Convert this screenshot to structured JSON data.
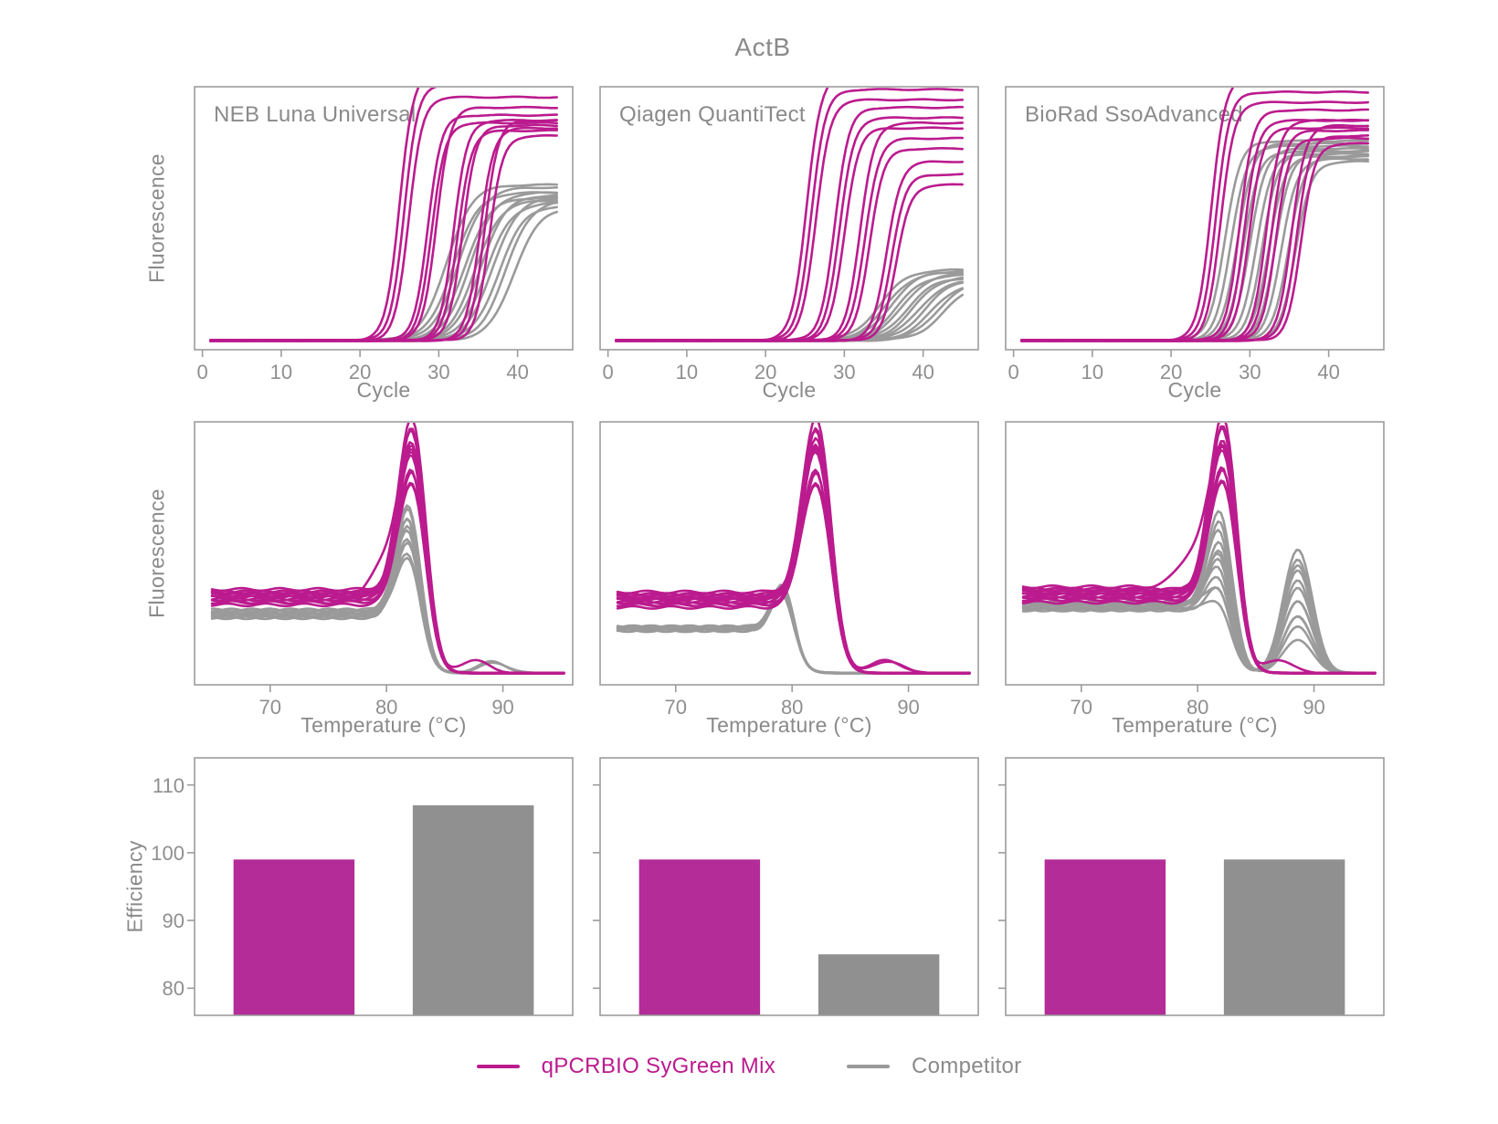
{
  "title": "ActB",
  "colors": {
    "qpcrbio_line": "#bb1b8e",
    "qpcrbio_fill": "#b32c98",
    "competitor_line": "#9a9a9a",
    "competitor_fill": "#909090",
    "text": "#8a8a8a",
    "tick_text": "#8f8f8f",
    "panel_border": "#9c9c9c"
  },
  "legend": [
    {
      "label": "qPCRBIO SyGreen Mix",
      "key": "qpcrbio"
    },
    {
      "label": "Competitor",
      "key": "competitor"
    }
  ],
  "chart_data": {
    "type": "multi-panel",
    "layout": "3 columns (master mixes) x 3 rows (amplification curves, melt curves, efficiency bars); legend bottom center",
    "title": "ActB",
    "axes": [
      {
        "row": "amplification",
        "type": "line",
        "xlabel": "Cycle",
        "ylabel": "Fluorescence",
        "xticks": [
          0,
          10,
          20,
          30,
          40
        ],
        "xlim": [
          -1,
          47
        ],
        "grid": false
      },
      {
        "row": "melt",
        "type": "line",
        "xlabel": "Temperature (°C)",
        "ylabel": "Fluorescence",
        "xticks": [
          70,
          80,
          90
        ],
        "xlim": [
          63.5,
          96
        ],
        "grid": false
      },
      {
        "row": "efficiency",
        "type": "bar",
        "ylabel": "Efficiency",
        "yticks": [
          80,
          90,
          100,
          110
        ],
        "ylim": [
          76,
          114
        ],
        "grid": false
      }
    ],
    "panels": [
      {
        "panel_label": "NEB Luna Universal",
        "amplification": {
          "x_start": 1,
          "x_end": 45.2,
          "baseline": 0.025,
          "qpcrbio": {
            "k": 1.15,
            "curves": [
              [
                25.0,
                1.07
              ],
              [
                25.6,
                1.02
              ],
              [
                26.2,
                0.97
              ],
              [
                28.6,
                0.9
              ],
              [
                29.1,
                0.87
              ],
              [
                29.7,
                0.93
              ],
              [
                31.9,
                0.88
              ],
              [
                32.4,
                0.84
              ],
              [
                33.0,
                0.86
              ],
              [
                35.2,
                0.85
              ],
              [
                35.8,
                0.88
              ],
              [
                36.4,
                0.82
              ]
            ]
          },
          "competitor": {
            "k": 0.62,
            "curves": [
              [
                31.0,
                0.63
              ],
              [
                31.8,
                0.6
              ],
              [
                32.5,
                0.62
              ],
              [
                33.2,
                0.58
              ],
              [
                33.9,
                0.6
              ],
              [
                34.6,
                0.57
              ],
              [
                35.3,
                0.59
              ],
              [
                36.0,
                0.56
              ],
              [
                36.8,
                0.58
              ],
              [
                37.6,
                0.55
              ],
              [
                38.5,
                0.57
              ],
              [
                39.5,
                0.54
              ]
            ]
          }
        },
        "melt": {
          "x_start": 65,
          "x_end": 95.3,
          "end_level": 0.035,
          "qpcrbio": {
            "tm": 82.2,
            "s": 1.15,
            "drop": 83.4,
            "curves": [
              [
                0.34,
                0.72
              ],
              [
                0.32,
                0.69
              ],
              [
                0.35,
                0.66
              ],
              [
                0.31,
                0.63
              ],
              [
                0.33,
                0.6
              ],
              [
                0.36,
                0.57
              ],
              [
                0.3,
                0.54
              ],
              [
                0.34,
                0.51
              ],
              [
                0.32,
                0.48
              ],
              [
                0.35,
                0.45
              ],
              [
                0.33,
                0.58
              ],
              [
                0.31,
                0.64
              ]
            ],
            "extras": [
              {
                "i": 3,
                "tm": 79.6,
                "h": 0.13,
                "s": 1.3
              },
              {
                "i": 7,
                "tm": 87.6,
                "h": 0.05,
                "s": 1.2
              }
            ]
          },
          "competitor": {
            "tm": 81.9,
            "s": 1.05,
            "drop": 82.9,
            "curves": [
              [
                0.26,
                0.46
              ],
              [
                0.27,
                0.43
              ],
              [
                0.25,
                0.41
              ],
              [
                0.28,
                0.39
              ],
              [
                0.26,
                0.37
              ],
              [
                0.27,
                0.35
              ],
              [
                0.25,
                0.32
              ],
              [
                0.28,
                0.3
              ],
              [
                0.26,
                0.27
              ],
              [
                0.27,
                0.24
              ]
            ],
            "extras": [
              {
                "i": 1,
                "tm": 89.0,
                "h": 0.045,
                "s": 1.2
              },
              {
                "i": 4,
                "tm": 89.2,
                "h": 0.04,
                "s": 1.2
              }
            ]
          }
        },
        "efficiency": {
          "categories": [
            "qPCRBIO SyGreen Mix",
            "Competitor"
          ],
          "values": [
            99,
            107
          ]
        }
      },
      {
        "panel_label": "Qiagen QuantiTect",
        "amplification": {
          "x_start": 1,
          "x_end": 45.2,
          "baseline": 0.025,
          "qpcrbio": {
            "k": 1.1,
            "curves": [
              [
                25.2,
                1.06
              ],
              [
                25.8,
                1.0
              ],
              [
                26.4,
                0.96
              ],
              [
                28.8,
                0.93
              ],
              [
                29.4,
                0.89
              ],
              [
                30.0,
                0.85
              ],
              [
                32.0,
                0.87
              ],
              [
                32.6,
                0.81
              ],
              [
                33.2,
                0.77
              ],
              [
                35.4,
                0.72
              ],
              [
                36.0,
                0.67
              ],
              [
                36.6,
                0.63
              ]
            ]
          },
          "competitor": {
            "k": 0.58,
            "curves": [
              [
                34.5,
                0.3
              ],
              [
                35.2,
                0.29
              ],
              [
                35.9,
                0.295
              ],
              [
                36.6,
                0.28
              ],
              [
                37.3,
                0.285
              ],
              [
                38.0,
                0.27
              ],
              [
                38.7,
                0.275
              ],
              [
                39.4,
                0.26
              ],
              [
                40.2,
                0.265
              ],
              [
                41.0,
                0.25
              ],
              [
                41.8,
                0.255
              ],
              [
                42.6,
                0.245
              ]
            ]
          }
        },
        "melt": {
          "x_start": 65,
          "x_end": 95.3,
          "end_level": 0.035,
          "qpcrbio": {
            "tm": 82.1,
            "s": 1.2,
            "drop": 83.5,
            "curves": [
              [
                0.33,
                0.72
              ],
              [
                0.31,
                0.69
              ],
              [
                0.34,
                0.66
              ],
              [
                0.3,
                0.63
              ],
              [
                0.32,
                0.6
              ],
              [
                0.35,
                0.57
              ],
              [
                0.29,
                0.54
              ],
              [
                0.33,
                0.51
              ],
              [
                0.31,
                0.48
              ],
              [
                0.34,
                0.45
              ],
              [
                0.32,
                0.62
              ],
              [
                0.3,
                0.67
              ]
            ],
            "extras": [
              {
                "i": 2,
                "tm": 88.0,
                "h": 0.05,
                "s": 1.3
              },
              {
                "i": 6,
                "tm": 88.2,
                "h": 0.045,
                "s": 1.3
              }
            ]
          },
          "competitor": {
            "tm": 79.2,
            "s": 0.9,
            "drop": 80.3,
            "curves": [
              [
                0.21,
                0.19
              ],
              [
                0.2,
                0.18
              ],
              [
                0.215,
                0.17
              ],
              [
                0.205,
                0.16
              ],
              [
                0.21,
                0.15
              ],
              [
                0.2,
                0.17
              ],
              [
                0.215,
                0.18
              ],
              [
                0.205,
                0.155
              ],
              [
                0.21,
                0.165
              ],
              [
                0.2,
                0.175
              ]
            ],
            "extras": []
          }
        },
        "efficiency": {
          "categories": [
            "qPCRBIO SyGreen Mix",
            "Competitor"
          ],
          "values": [
            99,
            85
          ]
        }
      },
      {
        "panel_label": "BioRad SsoAdvanced",
        "amplification": {
          "x_start": 1,
          "x_end": 45.2,
          "baseline": 0.025,
          "qpcrbio": {
            "k": 1.15,
            "curves": [
              [
                25.1,
                1.05
              ],
              [
                25.7,
                0.99
              ],
              [
                26.3,
                0.95
              ],
              [
                28.7,
                0.92
              ],
              [
                29.3,
                0.88
              ],
              [
                29.9,
                0.85
              ],
              [
                32.1,
                0.88
              ],
              [
                32.7,
                0.84
              ],
              [
                33.3,
                0.81
              ],
              [
                35.3,
                0.86
              ],
              [
                35.9,
                0.82
              ],
              [
                36.5,
                0.79
              ]
            ]
          },
          "competitor": {
            "k": 1.0,
            "curves": [
              [
                26.8,
                0.8
              ],
              [
                27.6,
                0.78
              ],
              [
                28.4,
                0.79
              ],
              [
                29.2,
                0.76
              ],
              [
                30.0,
                0.77
              ],
              [
                30.8,
                0.75
              ],
              [
                31.6,
                0.76
              ],
              [
                32.4,
                0.74
              ],
              [
                33.2,
                0.75
              ],
              [
                34.0,
                0.73
              ],
              [
                34.9,
                0.74
              ],
              [
                35.8,
                0.72
              ]
            ]
          }
        },
        "melt": {
          "x_start": 65,
          "x_end": 95.3,
          "end_level": 0.035,
          "qpcrbio": {
            "tm": 82.2,
            "s": 1.15,
            "drop": 83.4,
            "curves": [
              [
                0.35,
                0.72
              ],
              [
                0.33,
                0.69
              ],
              [
                0.36,
                0.66
              ],
              [
                0.32,
                0.63
              ],
              [
                0.34,
                0.6
              ],
              [
                0.37,
                0.57
              ],
              [
                0.31,
                0.54
              ],
              [
                0.35,
                0.51
              ],
              [
                0.33,
                0.48
              ],
              [
                0.36,
                0.45
              ],
              [
                0.34,
                0.59
              ],
              [
                0.32,
                0.65
              ]
            ],
            "extras": [
              {
                "i": 5,
                "tm": 79.6,
                "h": 0.12,
                "s": 1.3
              },
              {
                "i": 9,
                "tm": 87.0,
                "h": 0.05,
                "s": 1.2
              }
            ]
          },
          "competitor": {
            "tm": 82.0,
            "s": 1.05,
            "drop": 82.7,
            "tm2": 88.6,
            "s2": 1.25,
            "curves": [
              [
                0.3,
                0.42,
                0.13
              ],
              [
                0.29,
                0.38,
                0.18
              ],
              [
                0.31,
                0.33,
                0.22
              ],
              [
                0.28,
                0.28,
                0.28
              ],
              [
                0.3,
                0.22,
                0.33
              ],
              [
                0.29,
                0.16,
                0.4
              ],
              [
                0.31,
                0.1,
                0.48
              ],
              [
                0.28,
                0.12,
                0.44
              ],
              [
                0.3,
                0.25,
                0.28
              ],
              [
                0.29,
                0.3,
                0.22
              ],
              [
                0.31,
                0.18,
                0.36
              ],
              [
                0.28,
                0.07,
                0.42
              ]
            ],
            "extras": []
          }
        },
        "efficiency": {
          "categories": [
            "qPCRBIO SyGreen Mix",
            "Competitor"
          ],
          "values": [
            99,
            99
          ]
        }
      }
    ]
  }
}
